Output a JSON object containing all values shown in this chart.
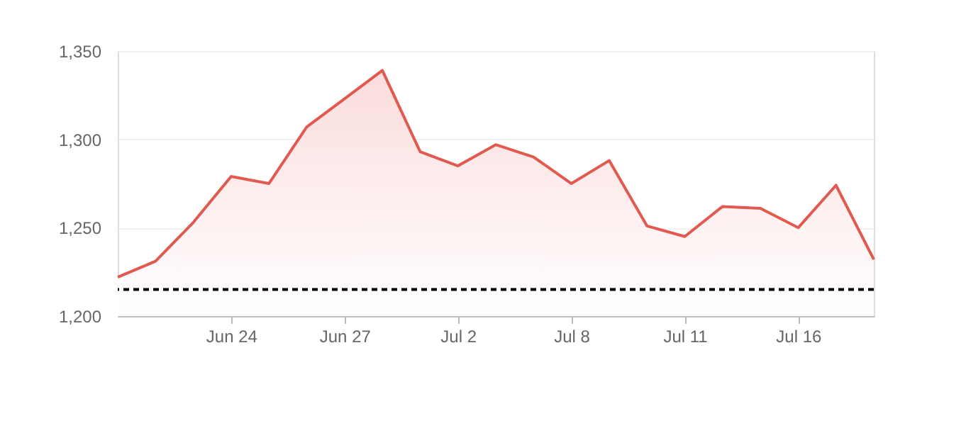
{
  "chart_data": {
    "type": "area",
    "categories": [
      null,
      null,
      null,
      "Jun 24",
      null,
      null,
      "Jun 27",
      null,
      null,
      "Jul 2",
      null,
      null,
      "Jul 8",
      null,
      null,
      "Jul 11",
      null,
      null,
      "Jul 16",
      null,
      null
    ],
    "series": [
      {
        "color": "#e05a50",
        "values": [
          1222,
          1231,
          1253,
          1279,
          1275,
          1307,
          1323,
          1339,
          1293,
          1285,
          1297,
          1290,
          1275,
          1288,
          1251,
          1245,
          1262,
          1261,
          1250,
          1274,
          1232
        ]
      }
    ],
    "ylim": [
      1200,
      1350
    ],
    "yticks": [
      {
        "value": 1200,
        "label": "1,200"
      },
      {
        "value": 1250,
        "label": "1,250"
      },
      {
        "value": 1300,
        "label": "1,300"
      },
      {
        "value": 1350,
        "label": "1,350"
      }
    ],
    "grid": "y",
    "marker": "none",
    "line_style": "solid",
    "ref_lines": [
      {
        "axis": "y",
        "value": 1215,
        "color": "#000000",
        "line_style": "dashed"
      }
    ]
  }
}
